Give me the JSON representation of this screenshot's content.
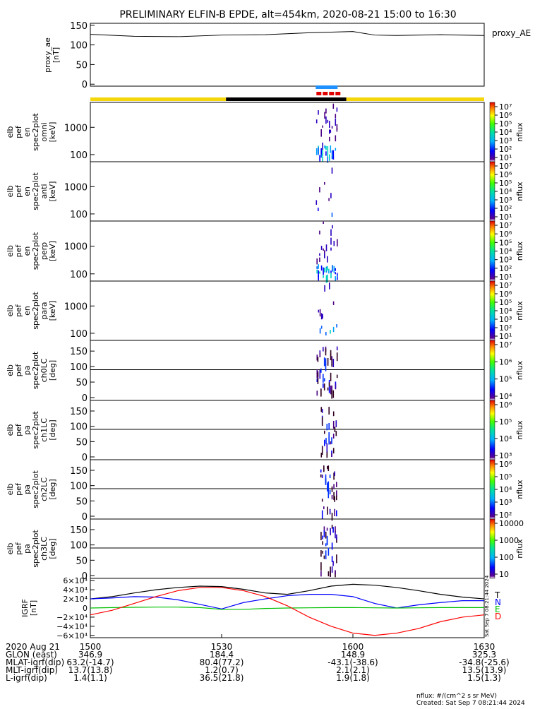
{
  "title": "PRELIMINARY ELFIN-B EPDE, alt=454km, 2020-08-21 15:00 to 16:30",
  "colors": {
    "day_bar": "#f5d60a",
    "night_bar": "#000000",
    "science_blue": "#1e90ff",
    "science_red": "#e00000",
    "bx": "#000000",
    "by": "#0000ff",
    "bz": "#00c000",
    "bt": "#ff0000"
  },
  "chart_data": [
    {
      "type": "line",
      "panel": "proxy_ae",
      "ylabel": [
        "proxy_ae",
        "[nT]"
      ],
      "yticks": [
        "150",
        "100",
        "50",
        "0"
      ],
      "ylim": [
        -5,
        155
      ],
      "legend": "proxy_AE",
      "x_minutes": [
        0,
        10,
        20,
        30,
        40,
        50,
        60,
        65,
        70,
        80,
        90
      ],
      "values": [
        127,
        122,
        121,
        125,
        126,
        131,
        134,
        125,
        124,
        126,
        124
      ]
    },
    {
      "type": "bar",
      "panel": "sunlight_bar",
      "segments": [
        {
          "state": "day",
          "start_min": 0,
          "end_min": 31
        },
        {
          "state": "night",
          "start_min": 31,
          "end_min": 58.5
        },
        {
          "state": "day",
          "start_min": 58.5,
          "end_min": 90
        }
      ],
      "science_zone_min": [
        51.5,
        56.5
      ]
    },
    {
      "type": "heatmap",
      "panel": "omni",
      "ylabel": [
        "elb",
        "pef",
        "en",
        "spec2plot",
        "omni",
        "[keV]"
      ],
      "yticks": [
        "1000",
        "100"
      ],
      "colorbar_ticks": [
        "10⁷",
        "10⁶",
        "10⁵",
        "10⁴",
        "10³",
        "10²",
        "10¹"
      ],
      "colorbar_label": "nflux",
      "time_range_min": [
        51.5,
        56.5
      ]
    },
    {
      "type": "heatmap",
      "panel": "anti",
      "ylabel": [
        "elb",
        "pef",
        "en",
        "spec2plot",
        "anti",
        "[keV]"
      ],
      "yticks": [
        "1000",
        "100"
      ],
      "colorbar_ticks": [
        "10⁷",
        "10⁶",
        "10⁵",
        "10⁴",
        "10³",
        "10²",
        "10¹"
      ],
      "colorbar_label": "nflux",
      "time_range_min": [
        51.5,
        56.5
      ]
    },
    {
      "type": "heatmap",
      "panel": "perp",
      "ylabel": [
        "elb",
        "pef",
        "en",
        "spec2plot",
        "perp",
        "[keV]"
      ],
      "yticks": [
        "1000",
        "100"
      ],
      "colorbar_ticks": [
        "10⁷",
        "10⁶",
        "10⁵",
        "10⁴",
        "10³",
        "10²",
        "10¹"
      ],
      "colorbar_label": "nflux",
      "time_range_min": [
        51.5,
        56.5
      ]
    },
    {
      "type": "heatmap",
      "panel": "para",
      "ylabel": [
        "elb",
        "pef",
        "en",
        "spec2plot",
        "para",
        "[keV]"
      ],
      "yticks": [
        "1000",
        "100"
      ],
      "colorbar_ticks": [
        "10⁷",
        "10⁶",
        "10⁵",
        "10⁴",
        "10³",
        "10²",
        "10¹"
      ],
      "colorbar_label": "nflux",
      "time_range_min": [
        51.5,
        56.5
      ]
    },
    {
      "type": "heatmap",
      "panel": "ch0LC",
      "ylabel": [
        "elb",
        "pef",
        "pa",
        "spec2plot",
        "ch0LC",
        "[deg]"
      ],
      "yticks": [
        "150",
        "100",
        "50",
        "0"
      ],
      "ylim": [
        0,
        180
      ],
      "ref_line": 90,
      "colorbar_ticks": [
        "10⁷",
        "10⁶",
        "10⁵",
        "10⁴"
      ],
      "colorbar_label": "nflux",
      "time_range_min": [
        51.5,
        56.5
      ]
    },
    {
      "type": "heatmap",
      "panel": "ch1LC",
      "ylabel": [
        "elb",
        "pef",
        "pa",
        "spec2plot",
        "ch1LC",
        "[deg]"
      ],
      "yticks": [
        "150",
        "100",
        "50",
        "0"
      ],
      "ylim": [
        0,
        180
      ],
      "ref_line": 90,
      "colorbar_ticks": [
        "10⁶",
        "10⁵",
        "10⁴",
        "10³"
      ],
      "colorbar_label": "nflux",
      "time_range_min": [
        52.5,
        56.5
      ]
    },
    {
      "type": "heatmap",
      "panel": "ch2LC",
      "ylabel": [
        "elb",
        "pef",
        "pa",
        "spec2plot",
        "ch2LC",
        "[deg]"
      ],
      "yticks": [
        "150",
        "100",
        "50",
        "0"
      ],
      "ylim": [
        0,
        180
      ],
      "ref_line": 90,
      "colorbar_ticks": [
        "10⁶",
        "10⁵",
        "10⁴",
        "10³",
        "10²"
      ],
      "colorbar_label": "nflux",
      "time_range_min": [
        52.5,
        56.5
      ]
    },
    {
      "type": "heatmap",
      "panel": "ch3LC",
      "ylabel": [
        "elb",
        "pef",
        "pa",
        "spec2plot",
        "ch3LC",
        "[deg]"
      ],
      "yticks": [
        "150",
        "100",
        "50",
        "0"
      ],
      "ylim": [
        0,
        180
      ],
      "ref_line": 90,
      "colorbar_ticks": [
        "10000",
        "1000",
        "100",
        "10"
      ],
      "colorbar_label": "nflux",
      "time_range_min": [
        52.5,
        56.5
      ]
    },
    {
      "type": "line",
      "panel": "igrf",
      "ylabel": [
        "IGRF",
        "[nT]"
      ],
      "yticks": [
        "6×10⁴",
        "4×10⁴",
        "2×10⁴",
        "0",
        "−2×10⁴",
        "−4×10⁴",
        "−6×10⁴"
      ],
      "ylim": [
        -65000,
        65000
      ],
      "x_minutes": [
        0,
        5,
        10,
        15,
        20,
        25,
        30,
        35,
        40,
        45,
        50,
        55,
        60,
        65,
        70,
        75,
        80,
        85,
        90
      ],
      "series": [
        {
          "name": "T",
          "values": [
            20000,
            25000,
            33000,
            40000,
            45000,
            48000,
            47000,
            41000,
            33000,
            30000,
            38000,
            48000,
            52000,
            50000,
            45000,
            38000,
            30000,
            24000,
            20000
          ]
        },
        {
          "name": "N",
          "values": [
            20000,
            22000,
            25000,
            24000,
            18000,
            8000,
            -2000,
            12000,
            20000,
            27000,
            30000,
            30000,
            25000,
            10000,
            0,
            7000,
            12000,
            16000,
            16000
          ]
        },
        {
          "name": "E",
          "values": [
            0,
            1000,
            1500,
            2000,
            2000,
            1000,
            -3000,
            -3000,
            -1000,
            0,
            500,
            1000,
            1000,
            500,
            0,
            500,
            1000,
            1000,
            1000
          ]
        },
        {
          "name": "D",
          "values": [
            -15000,
            -5000,
            10000,
            25000,
            38000,
            45000,
            45000,
            38000,
            25000,
            5000,
            -20000,
            -40000,
            -55000,
            -60000,
            -55000,
            -45000,
            -30000,
            -20000,
            -15000
          ]
        }
      ]
    }
  ],
  "x_axis": {
    "row_labels": [
      "2020 Aug 21",
      "GLON (east)",
      "MLAT-igrf(dip)",
      "MLT-igrf(dip)",
      "L-igrf(dip)"
    ],
    "columns": [
      {
        "min": 0,
        "values": [
          "1500",
          "346.9",
          "63.2(-14.7)",
          "13.7(13.8)",
          "1.4(1.1)"
        ]
      },
      {
        "min": 30,
        "values": [
          "1530",
          "184.4",
          "80.4(77.2)",
          "1.2(0.7)",
          "36.5(21.8)"
        ]
      },
      {
        "min": 60,
        "values": [
          "1600",
          "148.9",
          "-43.1(-38.6)",
          "2.1(2.1)",
          "1.9(1.8)"
        ]
      },
      {
        "min": 90,
        "values": [
          "1630",
          "325.3",
          "-34.8(-25.6)",
          "13.5(13.9)",
          "1.5(1.3)"
        ]
      }
    ]
  },
  "igrf_rotated_stamp": "Sat Sep  7 08:21:44 2024",
  "footer": {
    "units": "nflux: #/(cm^2 s sr MeV)",
    "created": "Created: Sat Sep  7 08:21:44 2024"
  }
}
